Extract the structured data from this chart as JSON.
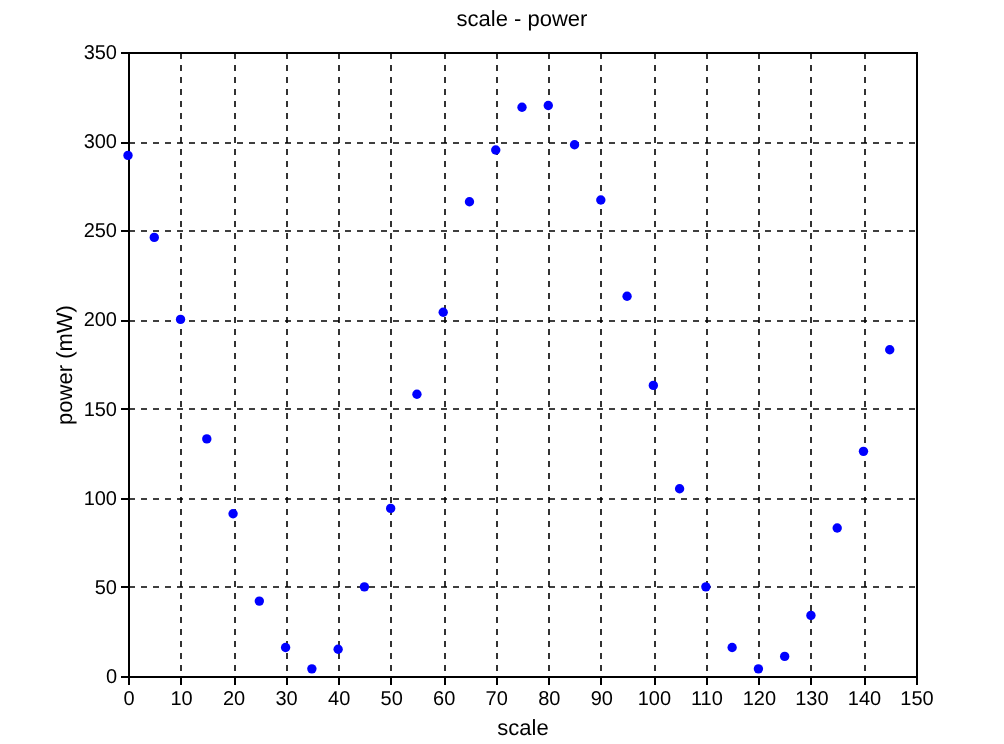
{
  "chart_data": {
    "type": "scatter",
    "title": "scale - power",
    "xlabel": "scale",
    "ylabel": "power (mW)",
    "x": [
      0,
      5,
      10,
      15,
      20,
      25,
      30,
      35,
      40,
      45,
      50,
      55,
      60,
      65,
      70,
      75,
      80,
      85,
      90,
      95,
      100,
      105,
      110,
      115,
      120,
      125,
      130,
      135,
      140,
      145
    ],
    "series": [
      {
        "color": "#0000ff",
        "values": [
          292,
          246,
          200,
          133,
          91,
          42,
          16,
          4,
          15,
          50,
          94,
          158,
          204,
          266,
          295,
          319,
          320,
          298,
          267,
          213,
          163,
          105,
          50,
          16,
          4,
          11,
          34,
          83,
          126,
          183
        ]
      }
    ],
    "xlim": [
      0,
      150
    ],
    "xticks": [
      0,
      10,
      20,
      30,
      40,
      50,
      60,
      70,
      80,
      90,
      100,
      110,
      120,
      130,
      140,
      150
    ],
    "ylim": [
      0,
      350
    ],
    "yticks": [
      0,
      50,
      100,
      150,
      200,
      250,
      300,
      350
    ],
    "grid": true,
    "marker": "circle"
  }
}
